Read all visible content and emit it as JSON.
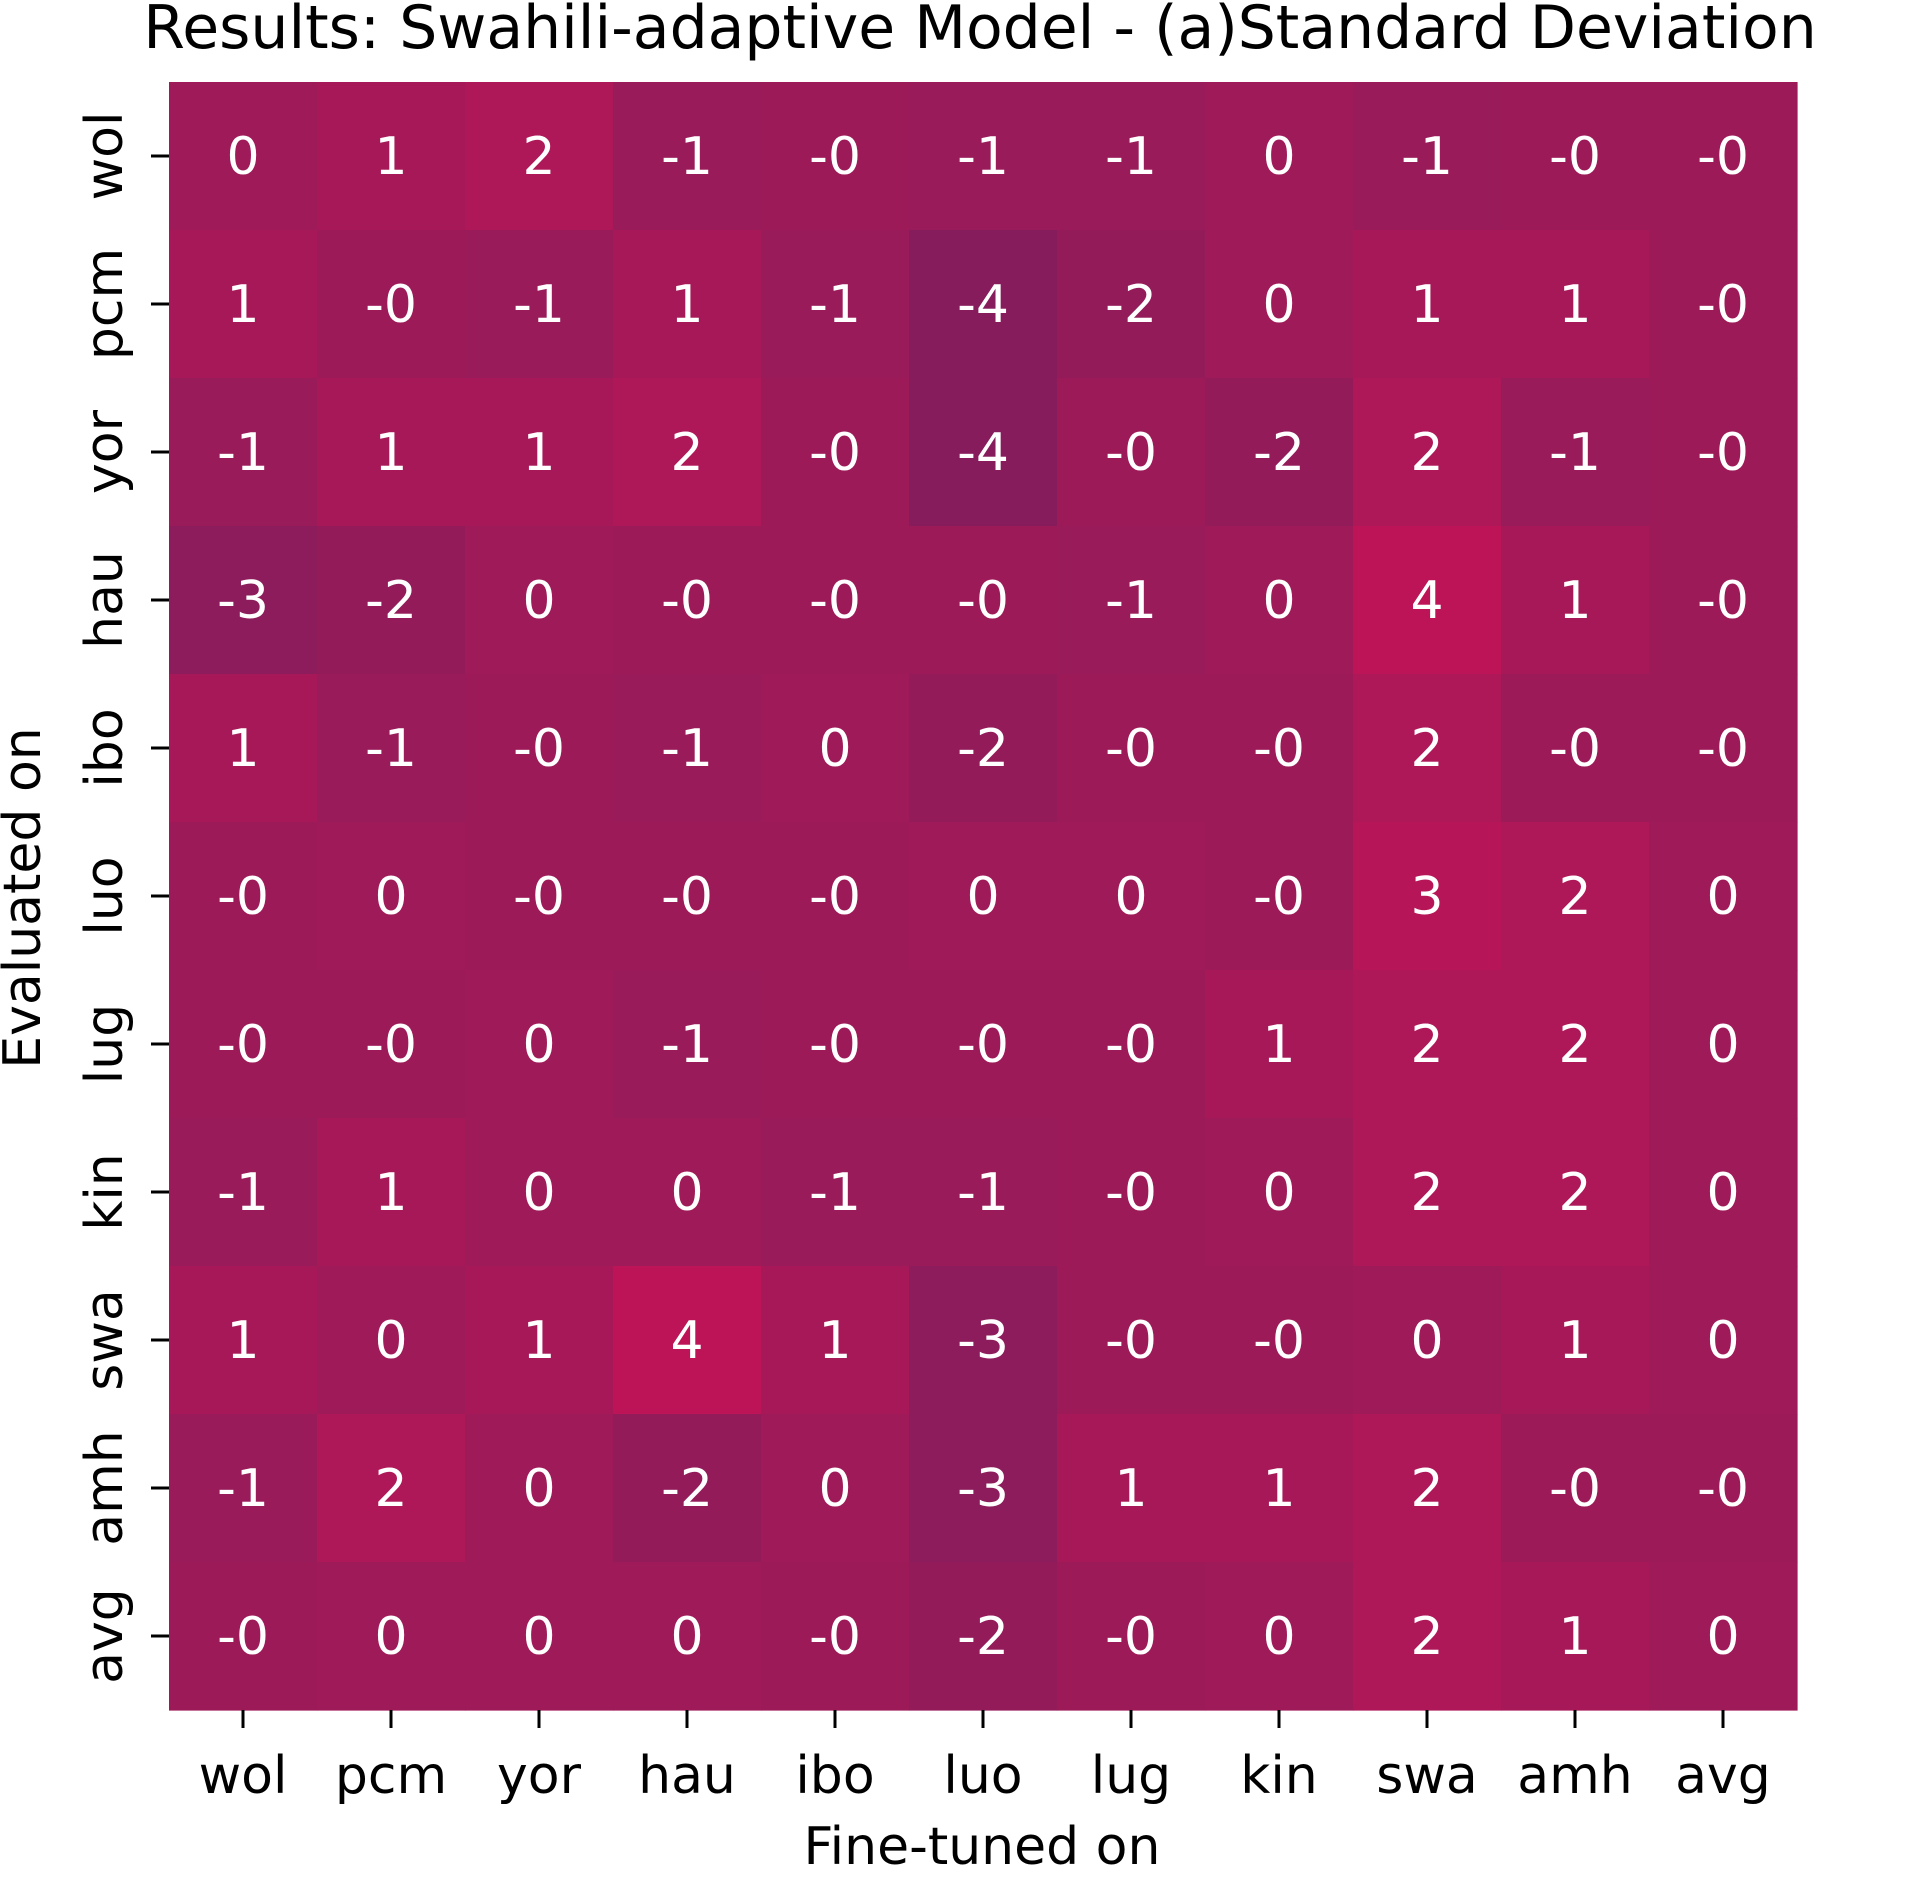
{
  "chart_data": {
    "type": "heatmap",
    "title": "Results: Swahili-adaptive Model - (a)Standard Deviation",
    "xlabel": "Fine-tuned on",
    "ylabel": "Evaluated on",
    "x_categories": [
      "wol",
      "pcm",
      "yor",
      "hau",
      "ibo",
      "luo",
      "lug",
      "kin",
      "swa",
      "amh",
      "avg"
    ],
    "y_categories": [
      "wol",
      "pcm",
      "yor",
      "hau",
      "ibo",
      "luo",
      "lug",
      "kin",
      "swa",
      "amh",
      "avg"
    ],
    "values": [
      [
        0,
        1,
        2,
        -1,
        -0.3,
        -1,
        -1,
        0,
        -1,
        -0.3,
        -0.3
      ],
      [
        1,
        -0.3,
        -1,
        1,
        -1,
        -4,
        -2,
        0,
        1,
        1,
        -0.3
      ],
      [
        -1,
        1,
        1,
        2,
        -0.3,
        -4,
        -0.3,
        -2,
        2,
        -1,
        -0.3
      ],
      [
        -3,
        -2,
        0,
        -0.3,
        -0.3,
        -0.3,
        -1,
        0,
        4,
        1,
        -0.3
      ],
      [
        1,
        -1,
        -0.3,
        -1,
        0,
        -2,
        -0.3,
        -0.3,
        2,
        -0.3,
        -0.3
      ],
      [
        -0.3,
        0,
        -0.3,
        -0.3,
        -0.3,
        0,
        0,
        -0.3,
        3,
        2,
        0
      ],
      [
        -0.3,
        -0.3,
        0,
        -1,
        -0.3,
        -0.3,
        -0.3,
        1,
        2,
        2,
        0
      ],
      [
        -1,
        1,
        0,
        0,
        -1,
        -1,
        -0.3,
        0,
        2,
        2,
        0
      ],
      [
        1,
        0,
        1,
        4,
        1,
        -3,
        -0.3,
        -0.3,
        0,
        1,
        0
      ],
      [
        -1,
        2,
        0,
        -2,
        0,
        -3,
        1,
        1,
        2,
        -0.3,
        -0.3
      ],
      [
        -0.3,
        0,
        0,
        0,
        -0.3,
        -2,
        -0.3,
        0,
        2,
        1,
        0
      ]
    ],
    "cell_labels": [
      [
        "0",
        "1",
        "2",
        "-1",
        "-0",
        "-1",
        "-1",
        "0",
        "-1",
        "-0",
        "-0"
      ],
      [
        "1",
        "-0",
        "-1",
        "1",
        "-1",
        "-4",
        "-2",
        "0",
        "1",
        "1",
        "-0"
      ],
      [
        "-1",
        "1",
        "1",
        "2",
        "-0",
        "-4",
        "-0",
        "-2",
        "2",
        "-1",
        "-0"
      ],
      [
        "-3",
        "-2",
        "0",
        "-0",
        "-0",
        "-0",
        "-1",
        "0",
        "4",
        "1",
        "-0"
      ],
      [
        "1",
        "-1",
        "-0",
        "-1",
        "0",
        "-2",
        "-0",
        "-0",
        "2",
        "-0",
        "-0"
      ],
      [
        "-0",
        "0",
        "-0",
        "-0",
        "-0",
        "0",
        "0",
        "-0",
        "3",
        "2",
        "0"
      ],
      [
        "-0",
        "-0",
        "0",
        "-1",
        "-0",
        "-0",
        "-0",
        "1",
        "2",
        "2",
        "0"
      ],
      [
        "-1",
        "1",
        "0",
        "0",
        "-1",
        "-1",
        "-0",
        "0",
        "2",
        "2",
        "0"
      ],
      [
        "1",
        "0",
        "1",
        "4",
        "1",
        "-3",
        "-0",
        "-0",
        "0",
        "1",
        "0"
      ],
      [
        "-1",
        "2",
        "0",
        "-2",
        "0",
        "-3",
        "1",
        "1",
        "2",
        "-0",
        "-0"
      ],
      [
        "-0",
        "0",
        "0",
        "0",
        "-0",
        "-2",
        "-0",
        "0",
        "2",
        "1",
        "0"
      ]
    ],
    "color_low": "#861c5c",
    "color_mid": "#9f1a58",
    "color_high": "#bd1357",
    "value_range": [
      -4,
      4
    ],
    "cell_text_color": "#ffffff",
    "grid": false,
    "legend": "none"
  }
}
